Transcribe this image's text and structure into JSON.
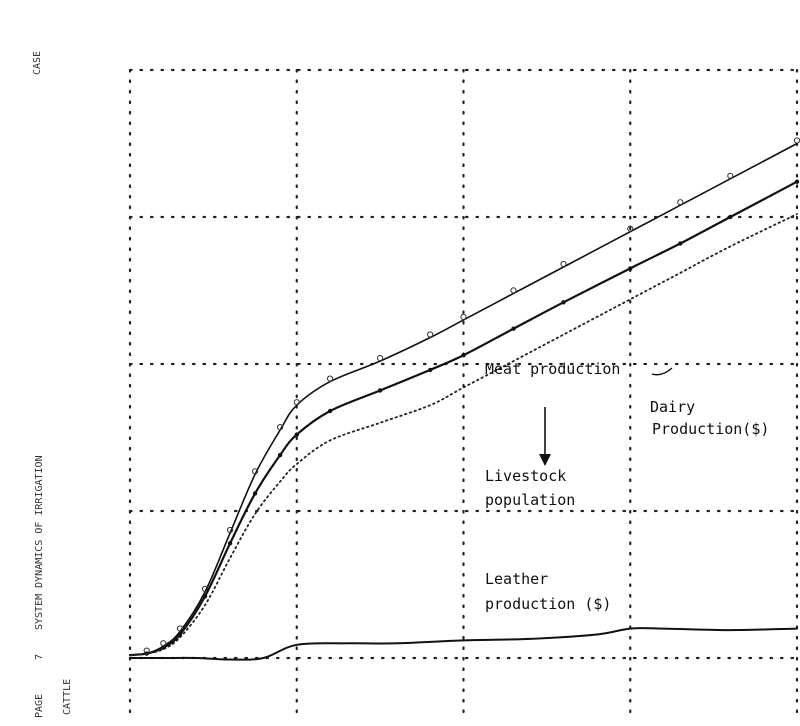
{
  "chart_data": {
    "type": "line",
    "title": "",
    "xlabel": "",
    "ylabel": "",
    "xlim": [
      0,
      4
    ],
    "ylim": [
      0,
      4
    ],
    "grid": true,
    "x_ticks": [
      0,
      1,
      2,
      3,
      4
    ],
    "y_ticks": [
      0,
      1,
      2,
      3,
      4
    ],
    "series": [
      {
        "name": "Meat production",
        "x": [
          0,
          0.1,
          0.2,
          0.3,
          0.45,
          0.6,
          0.75,
          0.9,
          1.0,
          1.2,
          1.5,
          1.8,
          2.0,
          2.3,
          2.6,
          3.0,
          3.3,
          3.6,
          4.0
        ],
        "y": [
          0.02,
          0.03,
          0.08,
          0.18,
          0.45,
          0.85,
          1.25,
          1.55,
          1.72,
          1.88,
          2.02,
          2.18,
          2.3,
          2.48,
          2.66,
          2.9,
          3.08,
          3.26,
          3.5
        ]
      },
      {
        "name": "Livestock population",
        "x": [
          0,
          0.1,
          0.2,
          0.3,
          0.45,
          0.6,
          0.75,
          0.9,
          1.0,
          1.2,
          1.5,
          1.8,
          2.0,
          2.3,
          2.6,
          3.0,
          3.3,
          3.6,
          4.0
        ],
        "y": [
          0.02,
          0.03,
          0.07,
          0.16,
          0.42,
          0.78,
          1.12,
          1.38,
          1.52,
          1.68,
          1.82,
          1.96,
          2.06,
          2.24,
          2.42,
          2.65,
          2.82,
          3.0,
          3.24
        ]
      },
      {
        "name": "Dairy Production($)",
        "x": [
          0,
          0.1,
          0.2,
          0.3,
          0.45,
          0.6,
          0.75,
          0.9,
          1.0,
          1.2,
          1.5,
          1.8,
          2.0,
          2.3,
          2.6,
          3.0,
          3.3,
          3.6,
          4.0
        ],
        "y": [
          0.02,
          0.03,
          0.06,
          0.14,
          0.36,
          0.68,
          0.98,
          1.2,
          1.32,
          1.48,
          1.6,
          1.72,
          1.84,
          2.02,
          2.2,
          2.44,
          2.62,
          2.8,
          3.02
        ]
      },
      {
        "name": "Leather production ($)",
        "x": [
          0,
          0.2,
          0.4,
          0.6,
          0.8,
          1.0,
          1.3,
          1.6,
          2.0,
          2.4,
          2.8,
          3.0,
          3.2,
          3.6,
          4.0
        ],
        "y": [
          0.0,
          0.0,
          0.0,
          -0.01,
          0.0,
          0.09,
          0.1,
          0.1,
          0.12,
          0.13,
          0.16,
          0.2,
          0.2,
          0.19,
          0.2
        ]
      }
    ],
    "annotations": {
      "meat": "Meat production",
      "livestock_1": "Livestock",
      "livestock_2": "population",
      "dairy_1": "Dairy",
      "dairy_2": "Production($)",
      "leather_1": "Leather",
      "leather_2": "production ($)"
    },
    "margin_text": {
      "left_1": "PAGE",
      "left_2": "7",
      "left_3": "SYSTEM DYNAMICS OF IRRIGATION",
      "left_4": "CATTLE",
      "top_left": "CASE"
    }
  }
}
